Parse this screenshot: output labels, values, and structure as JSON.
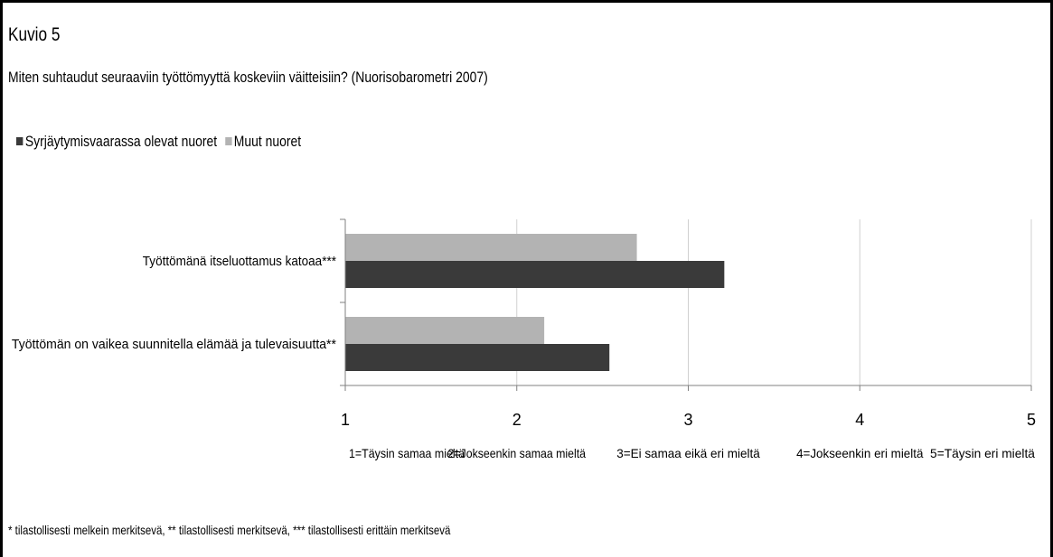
{
  "title": "Kuvio 5",
  "subtitle": "Miten suhtaudut seuraaviin työttömyyttä koskeviin väitteisiin? (Nuorisobarometri 2007)",
  "footnote": "* tilastollisesti melkein merkitsevä, ** tilastollisesti merkitsevä, *** tilastollisesti erittäin merkitsevä",
  "colors": {
    "series_dark": "#3a3a3a",
    "series_light": "#b3b3b3",
    "gridline": "#d0d0d0",
    "axis": "#808080"
  },
  "chart_data": {
    "type": "bar",
    "orientation": "horizontal",
    "categories": [
      "Työttömänä itseluottamus katoaa***",
      "Työttömän on vaikea suunnitella elämää ja tulevaisuutta**"
    ],
    "series": [
      {
        "name": "Syrjäytymisvaarassa olevat nuoret",
        "values": [
          3.21,
          2.54
        ]
      },
      {
        "name": "Muut nuoret",
        "values": [
          2.7,
          2.16
        ]
      }
    ],
    "xlim": [
      1,
      5
    ],
    "xticks": [
      "1",
      "2",
      "3",
      "4",
      "5"
    ],
    "scale_labels": [
      "1=Täysin samaa mieltä",
      "2=Jokseenkin samaa mieltä",
      "3=Ei samaa eikä eri mieltä",
      "4=Jokseenkin eri mieltä",
      "5=Täysin eri mieltä"
    ],
    "grid": true,
    "legend": "top-left"
  }
}
